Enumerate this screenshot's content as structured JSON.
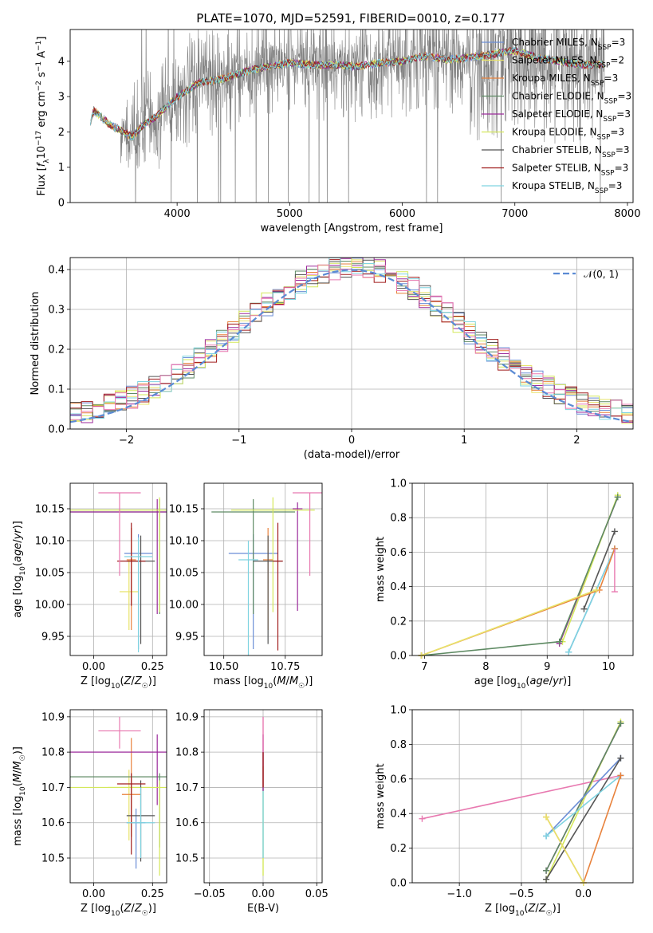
{
  "title": "PLATE=1070, MJD=52591, FIBERID=0010, z=0.177",
  "models": [
    {
      "name": "Chabrier MILES",
      "nssp": "3",
      "color": "#6b8ed6"
    },
    {
      "name": "Salpeter MILES",
      "nssp": "2",
      "color": "#e8e36a"
    },
    {
      "name": "Kroupa MILES",
      "nssp": "3",
      "color": "#e8823c"
    },
    {
      "name": "Chabrier ELODIE",
      "nssp": "3",
      "color": "#5e8a63"
    },
    {
      "name": "Salpeter ELODIE",
      "nssp": "3",
      "color": "#9b2a9b"
    },
    {
      "name": "Kroupa ELODIE",
      "nssp": "3",
      "color": "#d4e85a"
    },
    {
      "name": "Chabrier STELIB",
      "nssp": "3",
      "color": "#555555"
    },
    {
      "name": "Salpeter STELIB",
      "nssp": "3",
      "color": "#a01c1c"
    },
    {
      "name": "Kroupa STELIB",
      "nssp": "3",
      "color": "#7fd3e0"
    }
  ],
  "chart_data": [
    {
      "type": "line",
      "id": "spectrum",
      "title": "PLATE=1070, MJD=52591, FIBERID=0010, z=0.177",
      "xlabel": "wavelength [Angstrom, rest frame]",
      "ylabel": "Flux [f_λ 10^-17 erg cm^-2 s^-1 A^-1]",
      "xlim": [
        3050,
        8050
      ],
      "ylim": [
        0,
        4.9
      ],
      "xticks": [
        4000,
        5000,
        6000,
        7000,
        8000
      ],
      "yticks": [
        0,
        1,
        2,
        3,
        4
      ],
      "data_color": "#808080",
      "model_continuum": {
        "x": [
          3230,
          3260,
          3300,
          3400,
          3500,
          3600,
          3700,
          3800,
          3900,
          4000,
          4200,
          4400,
          4600,
          4800,
          5000,
          5200,
          5400,
          5600,
          5800,
          6000,
          6200,
          6400,
          6600,
          6800,
          7000,
          7200,
          7400,
          7600,
          7800
        ],
        "y": [
          2.3,
          2.6,
          2.5,
          2.2,
          2.05,
          1.85,
          2.2,
          2.4,
          2.7,
          3.0,
          3.4,
          3.5,
          3.7,
          3.85,
          3.95,
          3.9,
          3.9,
          3.85,
          3.95,
          4.0,
          4.15,
          4.05,
          4.1,
          4.2,
          4.3,
          4.1,
          4.0,
          3.9,
          3.9
        ]
      },
      "legend_placement": "upper right"
    },
    {
      "type": "line",
      "id": "residuals",
      "xlabel": "(data-model)/error",
      "ylabel": "Normed distribution",
      "xlim": [
        -2.5,
        2.5
      ],
      "ylim": [
        0,
        0.43
      ],
      "xticks": [
        -2,
        -1,
        0,
        1,
        2
      ],
      "yticks": [
        0.0,
        0.1,
        0.2,
        0.3,
        0.4
      ],
      "grid": true,
      "gaussian_label": "𝒩(0, 1)",
      "gaussian_color": "#5b8bd4",
      "legend_placement": "upper right",
      "hist_bin_width": 0.1
    },
    {
      "type": "scatter",
      "id": "age-vs-Z",
      "xlabel": "Z [log10(Z/Z☉)]",
      "ylabel": "age [log10(age/yr)]",
      "xlim": [
        -0.1,
        0.31
      ],
      "ylim": [
        9.92,
        10.19
      ],
      "xticks": [
        0.0,
        0.25
      ],
      "yticks": [
        9.95,
        10.0,
        10.05,
        10.1,
        10.15
      ],
      "grid": true,
      "points": [
        {
          "model": "Chabrier MILES",
          "x": 0.19,
          "y": 10.08,
          "xerr": 0.06,
          "yerr_lo": 0.15,
          "yerr_hi": 0.03
        },
        {
          "model": "Salpeter MILES",
          "x": 0.15,
          "y": 10.02,
          "xerr": 0.04,
          "yerr_lo": 0.06,
          "yerr_hi": 0.05
        },
        {
          "model": "Kroupa MILES",
          "x": 0.16,
          "y": 10.07,
          "xerr": 0.02,
          "yerr_lo": 0.11,
          "yerr_hi": 0.05
        },
        {
          "model": "Chabrier ELODIE",
          "x": 0.28,
          "y": 10.145,
          "xerr": 0.38,
          "yerr_lo": 0.16,
          "yerr_hi": 0.02
        },
        {
          "model": "Salpeter ELODIE",
          "x": 0.27,
          "y": 10.145,
          "xerr": 0.38,
          "yerr_lo": 0.16,
          "yerr_hi": 0.02
        },
        {
          "model": "Kroupa ELODIE",
          "x": 0.28,
          "y": 10.148,
          "xerr": 0.38,
          "yerr_lo": 0.16,
          "yerr_hi": 0.02
        },
        {
          "model": "Chabrier STELIB",
          "x": 0.2,
          "y": 10.068,
          "xerr": 0.06,
          "yerr_lo": 0.13,
          "yerr_hi": 0.04
        },
        {
          "model": "Salpeter STELIB",
          "x": 0.16,
          "y": 10.068,
          "xerr": 0.06,
          "yerr_lo": 0.07,
          "yerr_hi": 0.06
        },
        {
          "model": "Kroupa STELIB",
          "x": 0.19,
          "y": 10.075,
          "xerr": 0.06,
          "yerr_lo": 0.15,
          "yerr_hi": 0.03
        },
        {
          "model": "Pink",
          "x": 0.11,
          "y": 10.175,
          "xerr": 0.09,
          "yerr_lo": 0.13,
          "yerr_hi": 0.0
        }
      ]
    },
    {
      "type": "scatter",
      "id": "age-vs-mass",
      "xlabel": "mass [log10(M/M☉)]",
      "ylabel": "",
      "xlim": [
        10.42,
        10.9
      ],
      "ylim": [
        9.92,
        10.19
      ],
      "xticks": [
        10.5,
        10.75
      ],
      "yticks": [
        9.95,
        10.0,
        10.05,
        10.1,
        10.15
      ],
      "grid": true,
      "points": [
        {
          "model": "Chabrier MILES",
          "x": 10.62,
          "y": 10.08,
          "xerr": 0.1,
          "yerr_lo": 0.15,
          "yerr_hi": 0.03
        },
        {
          "model": "Kroupa MILES",
          "x": 10.68,
          "y": 10.07,
          "xerr": 0.02,
          "yerr_lo": 0.11,
          "yerr_hi": 0.05
        },
        {
          "model": "Chabrier ELODIE",
          "x": 10.62,
          "y": 10.145,
          "xerr": 0.17,
          "yerr_lo": 0.16,
          "yerr_hi": 0.02
        },
        {
          "model": "Salpeter ELODIE",
          "x": 10.8,
          "y": 10.15,
          "xerr": 0.02,
          "yerr_lo": 0.16,
          "yerr_hi": 0.01
        },
        {
          "model": "Kroupa ELODIE",
          "x": 10.7,
          "y": 10.148,
          "xerr": 0.17,
          "yerr_lo": 0.16,
          "yerr_hi": 0.02
        },
        {
          "model": "Chabrier STELIB",
          "x": 10.68,
          "y": 10.068,
          "xerr": 0.06,
          "yerr_lo": 0.13,
          "yerr_hi": 0.04
        },
        {
          "model": "Salpeter STELIB",
          "x": 10.72,
          "y": 10.068,
          "xerr": 0.02,
          "yerr_lo": 0.14,
          "yerr_hi": 0.06
        },
        {
          "model": "Kroupa STELIB",
          "x": 10.6,
          "y": 10.07,
          "xerr": 0.04,
          "yerr_lo": 0.15,
          "yerr_hi": 0.03
        },
        {
          "model": "Pink",
          "x": 10.85,
          "y": 10.175,
          "xerr": 0.07,
          "yerr_lo": 0.13,
          "yerr_hi": 0.0
        }
      ]
    },
    {
      "type": "line",
      "id": "weight-vs-age",
      "xlabel": "age [log10(age/yr)]",
      "ylabel": "mass weight",
      "xlim": [
        6.8,
        10.4
      ],
      "ylim": [
        0,
        1.0
      ],
      "xticks": [
        7,
        8,
        9,
        10
      ],
      "yticks": [
        0.0,
        0.2,
        0.4,
        0.6,
        0.8,
        1.0
      ],
      "grid": true,
      "series": [
        {
          "model": "Salpeter ELODIE",
          "x": [
            9.2,
            10.15
          ],
          "y": [
            0.07,
            0.92
          ]
        },
        {
          "model": "Kroupa ELODIE",
          "x": [
            9.25,
            10.15
          ],
          "y": [
            0.08,
            0.93
          ]
        },
        {
          "model": "Chabrier ELODIE",
          "x": [
            6.95,
            9.2,
            10.15
          ],
          "y": [
            0.0,
            0.08,
            0.92
          ]
        },
        {
          "model": "Chabrier MILES",
          "x": [
            9.35,
            10.1
          ],
          "y": [
            0.02,
            0.62
          ]
        },
        {
          "model": "Kroupa STELIB",
          "x": [
            9.35,
            10.1
          ],
          "y": [
            0.02,
            0.62
          ]
        },
        {
          "model": "Chabrier STELIB",
          "x": [
            9.6,
            10.1
          ],
          "y": [
            0.27,
            0.72
          ]
        },
        {
          "model": "Kroupa MILES",
          "x": [
            6.95,
            9.85,
            10.1
          ],
          "y": [
            0.0,
            0.38,
            0.62
          ]
        },
        {
          "model": "Salpeter MILES",
          "x": [
            6.95,
            9.8
          ],
          "y": [
            0.0,
            0.38
          ]
        }
      ],
      "pink_errorbar": {
        "x": 10.1,
        "y_lo": 0.37,
        "y_hi": 0.62
      }
    },
    {
      "type": "scatter",
      "id": "mass-vs-Z",
      "xlabel": "Z [log10(Z/Z☉)]",
      "ylabel": "mass [log10(M/M☉)]",
      "xlim": [
        -0.1,
        0.31
      ],
      "ylim": [
        10.43,
        10.92
      ],
      "xticks": [
        0.0,
        0.25
      ],
      "yticks": [
        10.5,
        10.6,
        10.7,
        10.8,
        10.9
      ],
      "grid": true,
      "points": [
        {
          "model": "Chabrier MILES",
          "x": 0.18,
          "y": 10.6,
          "xerr": 0.04,
          "yerr_lo": 0.13,
          "yerr_hi": 0.04
        },
        {
          "model": "Salpeter MILES",
          "x": 0.15,
          "y": 10.7,
          "xerr": 0.09,
          "yerr_lo": 0.15,
          "yerr_hi": 0.05
        },
        {
          "model": "Kroupa MILES",
          "x": 0.16,
          "y": 10.68,
          "xerr": 0.04,
          "yerr_lo": 0.12,
          "yerr_hi": 0.16
        },
        {
          "model": "Chabrier ELODIE",
          "x": 0.28,
          "y": 10.73,
          "xerr": 0.38,
          "yerr_lo": 0.2,
          "yerr_hi": 0.01
        },
        {
          "model": "Salpeter ELODIE",
          "x": 0.27,
          "y": 10.8,
          "xerr": 0.38,
          "yerr_lo": 0.15,
          "yerr_hi": 0.05
        },
        {
          "model": "Kroupa ELODIE",
          "x": 0.28,
          "y": 10.7,
          "xerr": 0.38,
          "yerr_lo": 0.25,
          "yerr_hi": 0.02
        },
        {
          "model": "Chabrier STELIB",
          "x": 0.2,
          "y": 10.62,
          "xerr": 0.06,
          "yerr_lo": 0.13,
          "yerr_hi": 0.1
        },
        {
          "model": "Salpeter STELIB",
          "x": 0.16,
          "y": 10.71,
          "xerr": 0.06,
          "yerr_lo": 0.2,
          "yerr_hi": 0.03
        },
        {
          "model": "Kroupa STELIB",
          "x": 0.2,
          "y": 10.6,
          "xerr": 0.06,
          "yerr_lo": 0.1,
          "yerr_hi": 0.1
        },
        {
          "model": "Pink",
          "x": 0.11,
          "y": 10.86,
          "xerr": 0.09,
          "yerr_lo": 0.05,
          "yerr_hi": 0.04
        }
      ]
    },
    {
      "type": "scatter",
      "id": "mass-vs-EBV",
      "xlabel": "E(B-V)",
      "ylabel": "",
      "xlim": [
        -0.055,
        0.055
      ],
      "ylim": [
        10.43,
        10.92
      ],
      "xticks": [
        -0.05,
        0.0,
        0.05
      ],
      "xticklabels": [
        "−0.05",
        "0.00",
        "0.05"
      ],
      "yticks": [
        10.5,
        10.6,
        10.7,
        10.8,
        10.9
      ],
      "grid": true,
      "bars": [
        {
          "model": "Kroupa ELODIE",
          "y_lo": 10.45,
          "y_hi": 10.76
        },
        {
          "model": "Kroupa STELIB",
          "y_lo": 10.5,
          "y_hi": 10.7
        },
        {
          "model": "Salpeter ELODIE",
          "y_lo": 10.69,
          "y_hi": 10.85
        },
        {
          "model": "Salpeter STELIB",
          "y_lo": 10.7,
          "y_hi": 10.8
        },
        {
          "model": "Pink",
          "y_lo": 10.8,
          "y_hi": 10.9
        }
      ]
    },
    {
      "type": "line",
      "id": "weight-vs-Z",
      "xlabel": "Z [log10(Z/Z☉)]",
      "ylabel": "mass weight",
      "xlim": [
        -1.38,
        0.4
      ],
      "ylim": [
        0,
        1.0
      ],
      "xticks": [
        -1.0,
        -0.5,
        0.0
      ],
      "xticklabels": [
        "−1.0",
        "−0.5",
        "0.0"
      ],
      "yticks": [
        0.0,
        0.2,
        0.4,
        0.6,
        0.8,
        1.0
      ],
      "grid": true,
      "series": [
        {
          "model": "Pink",
          "x": [
            -1.3,
            0.3
          ],
          "y": [
            0.37,
            0.62
          ]
        },
        {
          "model": "Kroupa ELODIE",
          "x": [
            -0.3,
            0.3
          ],
          "y": [
            0.02,
            0.93
          ]
        },
        {
          "model": "Salpeter ELODIE",
          "x": [
            -0.3,
            0.3
          ],
          "y": [
            0.07,
            0.92
          ]
        },
        {
          "model": "Chabrier ELODIE",
          "x": [
            -0.3,
            0.3
          ],
          "y": [
            0.07,
            0.92
          ]
        },
        {
          "model": "Chabrier MILES",
          "x": [
            -0.3,
            0.3
          ],
          "y": [
            0.27,
            0.72
          ]
        },
        {
          "model": "Chabrier STELIB",
          "x": [
            -0.3,
            0.3
          ],
          "y": [
            0.02,
            0.72
          ]
        },
        {
          "model": "Kroupa STELIB",
          "x": [
            -0.3,
            0.3
          ],
          "y": [
            0.27,
            0.62
          ]
        },
        {
          "model": "Kroupa MILES",
          "x": [
            -0.3,
            0.0,
            0.3
          ],
          "y": [
            0.38,
            0.0,
            0.62
          ]
        },
        {
          "model": "Salpeter MILES",
          "x": [
            -0.3,
            0.0
          ],
          "y": [
            0.38,
            0.0
          ]
        }
      ]
    }
  ]
}
